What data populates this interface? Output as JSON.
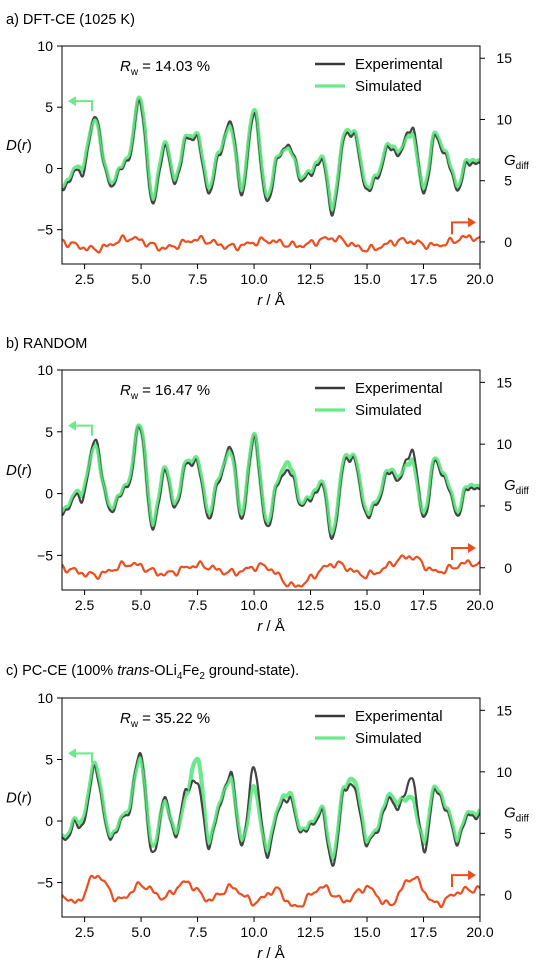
{
  "figure": {
    "panels": [
      {
        "title_parts": [
          {
            "text": "a) DFT-CE (1025 K)",
            "style": "normal"
          }
        ],
        "rw": {
          "symbol": "R",
          "sub": "w",
          "value": "= 14.03 %"
        },
        "seed": 11
      },
      {
        "title_parts": [
          {
            "text": "b) RANDOM",
            "style": "normal"
          }
        ],
        "rw": {
          "symbol": "R",
          "sub": "w",
          "value": "= 16.47 %"
        },
        "seed": 23
      },
      {
        "title_parts": [
          {
            "text": "c) PC-CE (100% ",
            "style": "normal"
          },
          {
            "text": "trans",
            "style": "italic"
          },
          {
            "text": "-OLi",
            "style": "normal"
          },
          {
            "text": "4",
            "style": "sub"
          },
          {
            "text": "Fe",
            "style": "normal"
          },
          {
            "text": "2",
            "style": "sub"
          },
          {
            "text": " ground-state).",
            "style": "normal"
          }
        ],
        "rw": {
          "symbol": "R",
          "sub": "w",
          "value": "= 35.22 %"
        },
        "seed": 37
      }
    ]
  },
  "chart_data": [
    {
      "type": "line",
      "title": "a) DFT-CE (1025 K)",
      "xlabel": "r / Å",
      "ylabel": "D(r)",
      "y2label": "G_diff",
      "xlim": [
        1.5,
        20.0
      ],
      "ylim": [
        -7.8,
        10
      ],
      "y2lim": [
        -1.8,
        16.0
      ],
      "xticks": [
        "2.5",
        "5.0",
        "7.5",
        "10.0",
        "12.5",
        "15.0",
        "17.5",
        "20.0"
      ],
      "yticks": [
        "−5",
        "0",
        "5",
        "10"
      ],
      "y2ticks": [
        "0",
        "5",
        "10",
        "15"
      ],
      "legend": {
        "position": "top-right",
        "entries": [
          "Experimental",
          "Simulated"
        ]
      },
      "annotation": "R_w = 14.03 %",
      "series": [
        {
          "name": "Experimental",
          "axis": "left",
          "color": "#3a3a3a",
          "x": [
            1.5,
            2.0,
            2.5,
            3.0,
            3.5,
            4.0,
            4.5,
            5.0,
            5.5,
            6.0,
            6.5,
            7.0,
            7.5,
            8.0,
            8.5,
            9.0,
            9.5,
            10.0,
            10.5,
            11.0,
            11.5,
            12.0,
            12.5,
            13.0,
            13.5,
            14.0,
            14.5,
            15.0,
            15.5,
            16.0,
            16.5,
            17.0,
            17.5,
            18.0,
            18.5,
            19.0,
            19.5,
            20.0
          ],
          "y": [
            -1.6,
            -0.5,
            0.2,
            4.3,
            -1.0,
            -0.4,
            1.2,
            5.3,
            -3.0,
            1.8,
            -1.0,
            2.2,
            2.3,
            -1.8,
            1.4,
            3.5,
            -2.0,
            4.8,
            -2.5,
            0.3,
            2.0,
            -0.5,
            -0.6,
            0.7,
            -3.4,
            2.6,
            2.2,
            -1.8,
            -0.4,
            1.7,
            1.2,
            3.5,
            -1.9,
            2.4,
            0.9,
            -1.5,
            0.5,
            0.3
          ]
        },
        {
          "name": "Simulated",
          "axis": "left",
          "color": "#6ce98a",
          "x": [
            1.5,
            2.0,
            2.5,
            3.0,
            3.5,
            4.0,
            4.5,
            5.0,
            5.5,
            6.0,
            6.5,
            7.0,
            7.5,
            8.0,
            8.5,
            9.0,
            9.5,
            10.0,
            10.5,
            11.0,
            11.5,
            12.0,
            12.5,
            13.0,
            13.5,
            14.0,
            14.5,
            15.0,
            15.5,
            16.0,
            16.5,
            17.0,
            17.5,
            18.0,
            18.5,
            19.0,
            19.5,
            20.0
          ],
          "y": [
            -1.4,
            -0.3,
            0.6,
            4.1,
            -0.8,
            -0.3,
            1.4,
            5.5,
            -2.7,
            2.0,
            -0.8,
            2.4,
            2.5,
            -1.5,
            1.6,
            3.2,
            -1.7,
            5.0,
            -2.2,
            0.5,
            1.8,
            -0.4,
            -0.4,
            0.9,
            -3.1,
            2.8,
            2.4,
            -1.6,
            -0.2,
            1.9,
            1.4,
            3.0,
            -1.6,
            2.6,
            1.1,
            -1.3,
            0.7,
            0.5
          ]
        },
        {
          "name": "G_diff",
          "axis": "right",
          "color": "#ee4e1f",
          "x": [
            1.5,
            3.0,
            4.5,
            6.0,
            7.5,
            9.0,
            10.5,
            12.0,
            13.5,
            15.0,
            16.5,
            18.0,
            19.5,
            20.0
          ],
          "y": [
            0.0,
            -0.6,
            0.3,
            -0.5,
            0.2,
            -0.4,
            0.1,
            -0.3,
            0.3,
            -0.6,
            0.1,
            -0.3,
            0.4,
            0.2
          ]
        }
      ]
    },
    {
      "type": "line",
      "title": "b) RANDOM",
      "xlabel": "r / Å",
      "ylabel": "D(r)",
      "y2label": "G_diff",
      "xlim": [
        1.5,
        20.0
      ],
      "ylim": [
        -7.8,
        10
      ],
      "y2lim": [
        -1.8,
        16.0
      ],
      "xticks": [
        "2.5",
        "5.0",
        "7.5",
        "10.0",
        "12.5",
        "15.0",
        "17.5",
        "20.0"
      ],
      "yticks": [
        "−5",
        "0",
        "5",
        "10"
      ],
      "y2ticks": [
        "0",
        "5",
        "10",
        "15"
      ],
      "legend": {
        "position": "top-right",
        "entries": [
          "Experimental",
          "Simulated"
        ]
      },
      "annotation": "R_w = 16.47 %",
      "series": [
        {
          "name": "Experimental",
          "axis": "left",
          "color": "#3a3a3a",
          "x": [
            1.5,
            2.0,
            2.5,
            3.0,
            3.5,
            4.0,
            4.5,
            5.0,
            5.5,
            6.0,
            6.5,
            7.0,
            7.5,
            8.0,
            8.5,
            9.0,
            9.5,
            10.0,
            10.5,
            11.0,
            11.5,
            12.0,
            12.5,
            13.0,
            13.5,
            14.0,
            14.5,
            15.0,
            15.5,
            16.0,
            16.5,
            17.0,
            17.5,
            18.0,
            18.5,
            19.0,
            19.5,
            20.0
          ],
          "y": [
            -1.6,
            -0.5,
            0.2,
            4.4,
            -1.0,
            -0.4,
            1.2,
            5.3,
            -3.0,
            1.8,
            -1.0,
            2.2,
            2.3,
            -1.8,
            1.4,
            3.5,
            -2.0,
            4.8,
            -2.5,
            0.3,
            2.0,
            -0.5,
            -0.6,
            0.7,
            -3.4,
            2.6,
            2.2,
            -1.8,
            -0.4,
            1.7,
            1.2,
            3.6,
            -1.9,
            2.4,
            0.9,
            -1.5,
            0.5,
            0.3
          ]
        },
        {
          "name": "Simulated",
          "axis": "left",
          "color": "#6ce98a",
          "x": [
            1.5,
            2.0,
            2.5,
            3.0,
            3.5,
            4.0,
            4.5,
            5.0,
            5.5,
            6.0,
            6.5,
            7.0,
            7.5,
            8.0,
            8.5,
            9.0,
            9.5,
            10.0,
            10.5,
            11.0,
            11.5,
            12.0,
            12.5,
            13.0,
            13.5,
            14.0,
            14.5,
            15.0,
            15.5,
            16.0,
            16.5,
            17.0,
            17.5,
            18.0,
            18.5,
            19.0,
            19.5,
            20.0
          ],
          "y": [
            -1.4,
            -0.3,
            0.6,
            4.0,
            -0.8,
            -0.3,
            1.4,
            5.4,
            -2.7,
            2.0,
            -0.8,
            2.4,
            2.5,
            -1.5,
            1.6,
            3.2,
            -1.7,
            4.9,
            -2.2,
            0.5,
            2.6,
            -0.4,
            -0.4,
            0.9,
            -3.1,
            2.8,
            2.4,
            -1.6,
            -0.2,
            1.9,
            1.4,
            2.8,
            -1.6,
            2.6,
            1.1,
            -1.3,
            0.7,
            0.5
          ]
        },
        {
          "name": "G_diff",
          "axis": "right",
          "color": "#ee4e1f",
          "x": [
            1.5,
            3.0,
            4.5,
            6.0,
            7.5,
            9.0,
            10.5,
            11.8,
            13.5,
            15.0,
            16.9,
            18.0,
            19.5,
            20.0
          ],
          "y": [
            0.0,
            -0.6,
            0.3,
            -0.5,
            0.2,
            -0.4,
            0.1,
            -1.5,
            0.3,
            -0.6,
            0.9,
            -0.3,
            0.4,
            0.2
          ]
        }
      ]
    },
    {
      "type": "line",
      "title": "c) PC-CE (100% trans-OLi4Fe2 ground-state).",
      "xlabel": "r / Å",
      "ylabel": "D(r)",
      "y2label": "G_diff",
      "xlim": [
        1.5,
        20.0
      ],
      "ylim": [
        -7.8,
        10
      ],
      "y2lim": [
        -1.8,
        16.0
      ],
      "xticks": [
        "2.5",
        "5.0",
        "7.5",
        "10.0",
        "12.5",
        "15.0",
        "17.5",
        "20.0"
      ],
      "yticks": [
        "−5",
        "0",
        "5",
        "10"
      ],
      "y2ticks": [
        "0",
        "5",
        "10",
        "15"
      ],
      "legend": {
        "position": "top-right",
        "entries": [
          "Experimental",
          "Simulated"
        ]
      },
      "annotation": "R_w = 35.22 %",
      "series": [
        {
          "name": "Experimental",
          "axis": "left",
          "color": "#3a3a3a",
          "x": [
            1.5,
            2.0,
            2.5,
            3.0,
            3.5,
            4.0,
            4.5,
            5.0,
            5.5,
            6.0,
            6.5,
            7.0,
            7.5,
            8.0,
            8.5,
            9.0,
            9.5,
            10.0,
            10.5,
            11.0,
            11.5,
            12.0,
            12.5,
            13.0,
            13.5,
            14.0,
            14.5,
            15.0,
            15.5,
            16.0,
            16.5,
            17.0,
            17.5,
            18.0,
            18.5,
            19.0,
            19.5,
            20.0
          ],
          "y": [
            -1.6,
            -0.5,
            0.2,
            4.4,
            -1.0,
            -0.4,
            1.2,
            5.3,
            -3.0,
            1.8,
            -1.0,
            2.4,
            3.0,
            -1.8,
            1.4,
            3.5,
            -2.0,
            4.6,
            -2.5,
            0.3,
            2.0,
            -0.5,
            -0.6,
            0.7,
            -3.4,
            2.6,
            2.2,
            -1.8,
            -0.4,
            1.7,
            1.2,
            3.6,
            -2.2,
            2.4,
            0.9,
            -1.5,
            0.5,
            0.3
          ]
        },
        {
          "name": "Simulated",
          "axis": "left",
          "color": "#6ce98a",
          "x": [
            1.5,
            2.0,
            2.5,
            3.0,
            3.5,
            4.0,
            4.5,
            5.0,
            5.5,
            6.0,
            6.5,
            7.0,
            7.5,
            8.0,
            8.5,
            9.0,
            9.5,
            10.0,
            10.5,
            11.0,
            11.5,
            12.0,
            12.5,
            13.0,
            13.5,
            14.0,
            14.5,
            15.0,
            15.5,
            16.0,
            16.5,
            17.0,
            17.5,
            18.0,
            18.5,
            19.0,
            19.5,
            20.0
          ],
          "y": [
            -1.4,
            -0.3,
            0.6,
            4.6,
            -0.8,
            -0.3,
            1.4,
            5.0,
            -2.4,
            1.6,
            -0.8,
            2.0,
            5.0,
            -1.5,
            1.6,
            3.2,
            -1.7,
            3.0,
            -2.2,
            0.5,
            2.4,
            -0.4,
            -0.4,
            0.9,
            -2.9,
            2.8,
            2.8,
            -1.6,
            -0.2,
            2.0,
            1.4,
            2.0,
            -1.6,
            2.6,
            1.1,
            -1.3,
            0.7,
            0.5
          ]
        },
        {
          "name": "G_diff",
          "axis": "right",
          "color": "#ee4e1f",
          "x": [
            1.5,
            2.2,
            3.0,
            4.0,
            5.0,
            6.0,
            7.0,
            8.0,
            9.0,
            10.0,
            11.0,
            11.8,
            13.0,
            14.0,
            15.0,
            16.0,
            17.0,
            18.0,
            19.0,
            20.0
          ],
          "y": [
            0.0,
            -0.6,
            1.6,
            -0.4,
            0.8,
            -0.2,
            1.0,
            -0.4,
            0.6,
            -0.6,
            0.4,
            -1.0,
            0.6,
            -0.5,
            0.6,
            -0.8,
            1.4,
            -0.7,
            0.2,
            0.5
          ]
        }
      ]
    }
  ]
}
